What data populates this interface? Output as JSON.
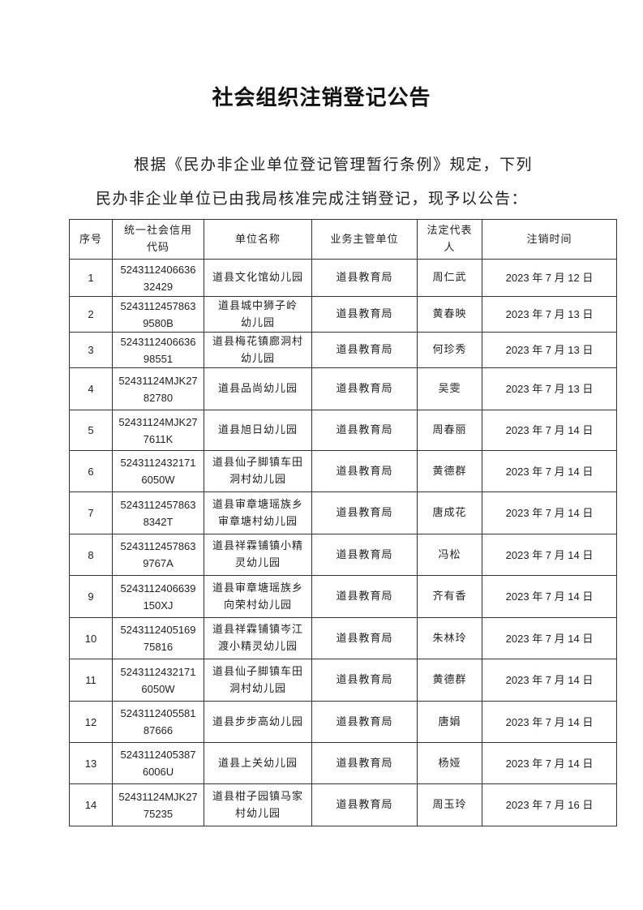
{
  "title": "社会组织注销登记公告",
  "intro": {
    "line1": "根据《民办非企业单位登记管理暂行条例》规定，下列",
    "line2": "民办非企业单位已由我局核准完成注销登记，现予以公告："
  },
  "table": {
    "headers": {
      "seq": "序号",
      "code": [
        "统一社会信用",
        "代码"
      ],
      "name": "单位名称",
      "dept": "业务主管单位",
      "rep": [
        "法定代表",
        "人"
      ],
      "date": "注销时间"
    },
    "rows": [
      {
        "seq": "1",
        "code": [
          "5243112406636",
          "32429"
        ],
        "name": [
          "道县文化馆幼儿园"
        ],
        "dept": "道县教育局",
        "rep": "周仁武",
        "date": "2023 年 7 月 12 日"
      },
      {
        "seq": "2",
        "code": [
          "5243112457863",
          "9580B"
        ],
        "name": [
          "道县城中狮子岭",
          "幼儿园"
        ],
        "dept": "道县教育局",
        "rep": "黄春映",
        "date": "2023 年 7 月 13 日"
      },
      {
        "seq": "3",
        "code": [
          "5243112406636",
          "98551"
        ],
        "name": [
          "道县梅花镇廊洞村",
          "幼儿园"
        ],
        "dept": "道县教育局",
        "rep": "何珍秀",
        "date": "2023 年 7 月 13 日"
      },
      {
        "seq": "4",
        "code": [
          "52431124MJK27",
          "82780"
        ],
        "name": [
          "道县品尚幼儿园"
        ],
        "dept": "道县教育局",
        "rep": "吴雯",
        "date": "2023 年 7 月 13 日"
      },
      {
        "seq": "5",
        "code": [
          "52431124MJK27",
          "7611K"
        ],
        "name": [
          "道县旭日幼儿园"
        ],
        "dept": "道县教育局",
        "rep": "周春丽",
        "date": "2023 年 7 月 14 日"
      },
      {
        "seq": "6",
        "code": [
          "5243112432171",
          "6050W"
        ],
        "name": [
          "道县仙子脚镇车田",
          "洞村幼儿园"
        ],
        "dept": "道县教育局",
        "rep": "黄德群",
        "date": "2023 年 7 月 14 日"
      },
      {
        "seq": "7",
        "code": [
          "5243112457863",
          "8342T"
        ],
        "name": [
          "道县审章塘瑶族乡",
          "审章塘村幼儿园"
        ],
        "dept": "道县教育局",
        "rep": "唐成花",
        "date": "2023 年 7 月 14 日"
      },
      {
        "seq": "8",
        "code": [
          "5243112457863",
          "9767A"
        ],
        "name": [
          "道县祥霖铺镇小精",
          "灵幼儿园"
        ],
        "dept": "道县教育局",
        "rep": "冯松",
        "date": "2023 年 7 月 14 日"
      },
      {
        "seq": "9",
        "code": [
          "5243112406639",
          "150XJ"
        ],
        "name": [
          "道县审章塘瑶族乡",
          "向荣村幼儿园"
        ],
        "dept": "道县教育局",
        "rep": "齐有香",
        "date": "2023 年 7 月 14 日"
      },
      {
        "seq": "10",
        "code": [
          "5243112405169",
          "75816"
        ],
        "name": [
          "道县祥霖铺镇岑江",
          "渡小精灵幼儿园"
        ],
        "dept": "道县教育局",
        "rep": "朱林玲",
        "date": "2023 年 7 月 14 日"
      },
      {
        "seq": "11",
        "code": [
          "5243112432171",
          "6050W"
        ],
        "name": [
          "道县仙子脚镇车田",
          "洞村幼儿园"
        ],
        "dept": "道县教育局",
        "rep": "黄德群",
        "date": "2023 年 7 月 14 日"
      },
      {
        "seq": "12",
        "code": [
          "5243112405581",
          "87666"
        ],
        "name": [
          "道县步步高幼儿园"
        ],
        "dept": "道县教育局",
        "rep": "唐娟",
        "date": "2023 年 7 月 14 日"
      },
      {
        "seq": "13",
        "code": [
          "5243112405387",
          "6006U"
        ],
        "name": [
          "道县上关幼儿园"
        ],
        "dept": "道县教育局",
        "rep": "杨娅",
        "date": "2023 年 7 月 14 日"
      },
      {
        "seq": "14",
        "code": [
          "52431124MJK27",
          "75235"
        ],
        "name": [
          "道县柑子园镇马家",
          "村幼儿园"
        ],
        "dept": "道县教育局",
        "rep": "周玉玲",
        "date": "2023 年 7 月 16 日"
      }
    ]
  }
}
